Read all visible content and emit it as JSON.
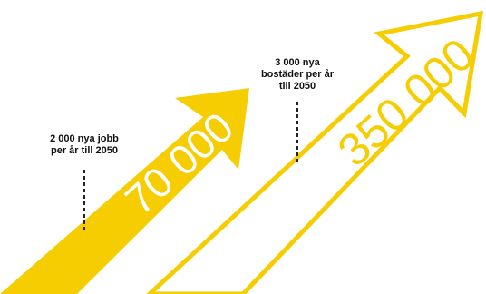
{
  "accent_color": "#f5cd00",
  "big_arrow": {
    "value_text": "350 000"
  },
  "small_arrow": {
    "value_text": "70 000"
  },
  "callout_jobs": {
    "lines": [
      "2 000 nya jobb",
      "per år till 2050"
    ]
  },
  "callout_homes": {
    "lines": [
      "3 000 nya",
      "bostäder per år",
      "till 2050"
    ]
  }
}
